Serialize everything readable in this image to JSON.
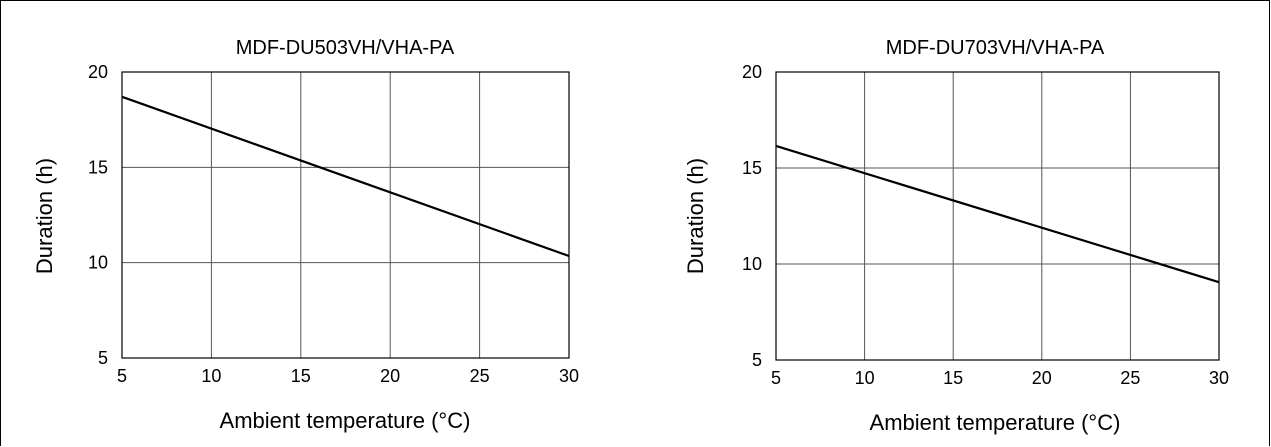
{
  "chart_data": [
    {
      "type": "line",
      "title": "MDF-DU503VH/VHA-PA",
      "xlabel": "Ambient temperature (°C)",
      "ylabel": "Duration (h)",
      "xlim": [
        5,
        30
      ],
      "ylim": [
        5,
        20
      ],
      "xticks": [
        "5",
        "10",
        "15",
        "20",
        "25",
        "30"
      ],
      "yticks": [
        "5",
        "10",
        "15",
        "20"
      ],
      "grid": true,
      "series": [
        {
          "x": [
            5,
            30
          ],
          "y": [
            18.7,
            10.35
          ]
        }
      ]
    },
    {
      "type": "line",
      "title": "MDF-DU703VH/VHA-PA",
      "xlabel": "Ambient temperature (°C)",
      "ylabel": "Duration (h)",
      "xlim": [
        5,
        30
      ],
      "ylim": [
        5,
        20
      ],
      "xticks": [
        "5",
        "10",
        "15",
        "20",
        "25",
        "30"
      ],
      "yticks": [
        "5",
        "10",
        "15",
        "20"
      ],
      "grid": true,
      "series": [
        {
          "x": [
            5,
            30
          ],
          "y": [
            16.15,
            9.05
          ]
        }
      ]
    }
  ]
}
